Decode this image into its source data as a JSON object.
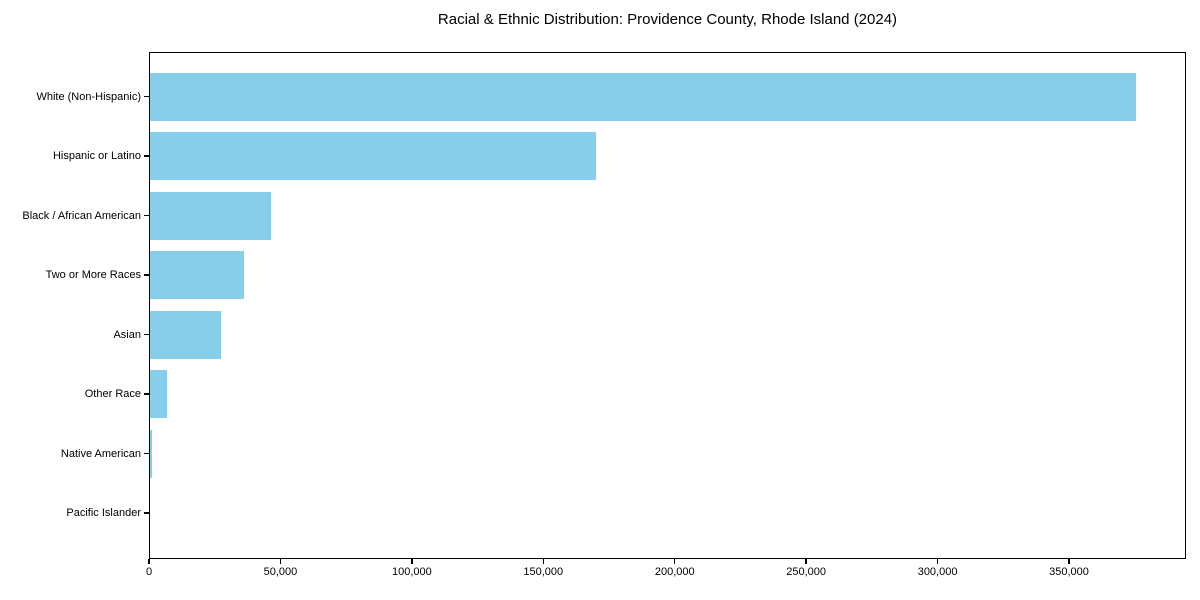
{
  "chart_data": {
    "type": "bar",
    "orientation": "horizontal",
    "title": "Racial & Ethnic Distribution: Providence County, Rhode Island (2024)",
    "xlabel": "",
    "ylabel": "",
    "categories": [
      "White (Non-Hispanic)",
      "Hispanic or Latino",
      "Black / African American",
      "Two or More Races",
      "Asian",
      "Other Race",
      "Native American",
      "Pacific Islander"
    ],
    "values": [
      375500,
      170000,
      46400,
      36100,
      27500,
      7000,
      1200,
      400
    ],
    "xlim": [
      0,
      394500
    ],
    "x_ticks": [
      {
        "value": 0,
        "label": "0"
      },
      {
        "value": 50000,
        "label": "50,000"
      },
      {
        "value": 100000,
        "label": "100,000"
      },
      {
        "value": 150000,
        "label": "150,000"
      },
      {
        "value": 200000,
        "label": "200,000"
      },
      {
        "value": 250000,
        "label": "250,000"
      },
      {
        "value": 300000,
        "label": "300,000"
      },
      {
        "value": 350000,
        "label": "350,000"
      }
    ],
    "grid": false,
    "legend": null,
    "colors": {
      "bar": "#87CEEB",
      "axis": "#000000",
      "background": "#ffffff",
      "text": "#000000"
    }
  }
}
